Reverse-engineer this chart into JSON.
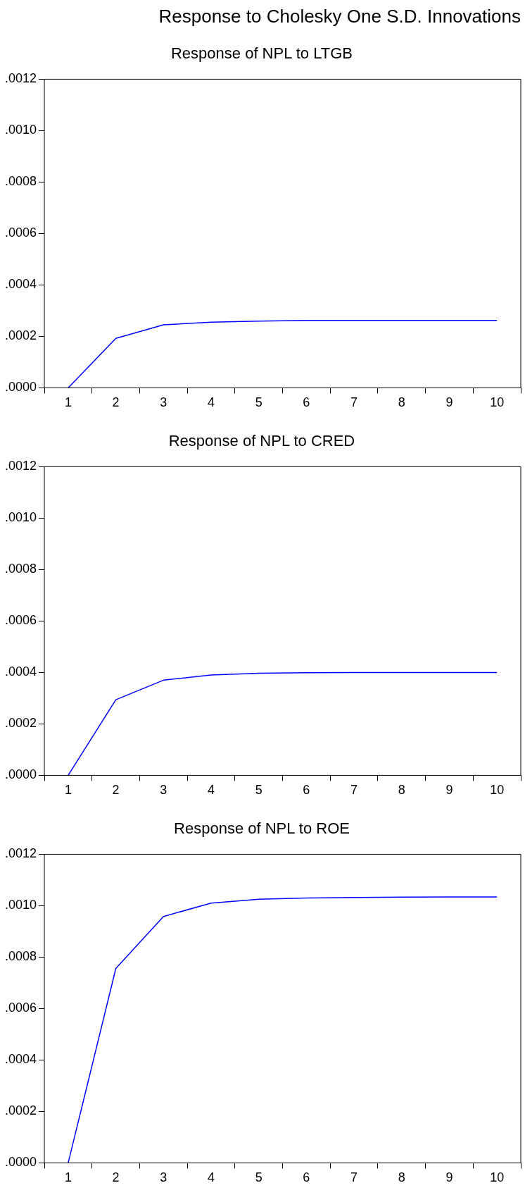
{
  "chart_data": [
    {
      "type": "line",
      "title": "Response of NPL to LTGB",
      "annotations": [
        "Response to Cholesky One S.D. Innovations"
      ],
      "categories": [
        "1",
        "2",
        "3",
        "4",
        "5",
        "6",
        "7",
        "8",
        "9",
        "10"
      ],
      "series": [
        {
          "color": "#0000ff",
          "values": [
            0,
            0.000192,
            0.000245,
            0.000255,
            0.000259,
            0.000262,
            0.000262,
            0.000262,
            0.000262,
            0.000262
          ]
        }
      ],
      "ylim": [
        0,
        0.0012
      ],
      "yticks": [
        {
          "value": 0,
          "label": ".0000"
        },
        {
          "value": 0.0002,
          "label": ".0002"
        },
        {
          "value": 0.0004,
          "label": ".0004"
        },
        {
          "value": 0.0006,
          "label": ".0006"
        },
        {
          "value": 0.0008,
          "label": ".0008"
        },
        {
          "value": 0.001,
          "label": ".0010"
        },
        {
          "value": 0.0012,
          "label": ".0012"
        }
      ],
      "grid": false,
      "legend": false,
      "marker": "none",
      "line_style": "solid"
    },
    {
      "type": "line",
      "title": "Response of NPL to CRED",
      "categories": [
        "1",
        "2",
        "3",
        "4",
        "5",
        "6",
        "7",
        "8",
        "9",
        "10"
      ],
      "series": [
        {
          "color": "#0000ff",
          "values": [
            0,
            0.000294,
            0.00037,
            0.00039,
            0.000397,
            0.000399,
            0.0004,
            0.0004,
            0.0004,
            0.0004
          ]
        }
      ],
      "ylim": [
        0,
        0.0012
      ],
      "yticks": [
        {
          "value": 0,
          "label": ".0000"
        },
        {
          "value": 0.0002,
          "label": ".0002"
        },
        {
          "value": 0.0004,
          "label": ".0004"
        },
        {
          "value": 0.0006,
          "label": ".0006"
        },
        {
          "value": 0.0008,
          "label": ".0008"
        },
        {
          "value": 0.001,
          "label": ".0010"
        },
        {
          "value": 0.0012,
          "label": ".0012"
        }
      ],
      "grid": false,
      "legend": false,
      "marker": "none",
      "line_style": "solid"
    },
    {
      "type": "line",
      "title": "Response of NPL to ROE",
      "categories": [
        "1",
        "2",
        "3",
        "4",
        "5",
        "6",
        "7",
        "8",
        "9",
        "10"
      ],
      "series": [
        {
          "color": "#0000ff",
          "values": [
            0,
            0.000756,
            0.000958,
            0.00101,
            0.001025,
            0.00103,
            0.001032,
            0.001033,
            0.001034,
            0.001034
          ]
        }
      ],
      "ylim": [
        0,
        0.0012
      ],
      "yticks": [
        {
          "value": 0,
          "label": ".0000"
        },
        {
          "value": 0.0002,
          "label": ".0002"
        },
        {
          "value": 0.0004,
          "label": ".0004"
        },
        {
          "value": 0.0006,
          "label": ".0006"
        },
        {
          "value": 0.0008,
          "label": ".0008"
        },
        {
          "value": 0.001,
          "label": ".0010"
        },
        {
          "value": 0.0012,
          "label": ".0012"
        }
      ],
      "grid": false,
      "legend": false,
      "marker": "none",
      "line_style": "solid"
    }
  ]
}
